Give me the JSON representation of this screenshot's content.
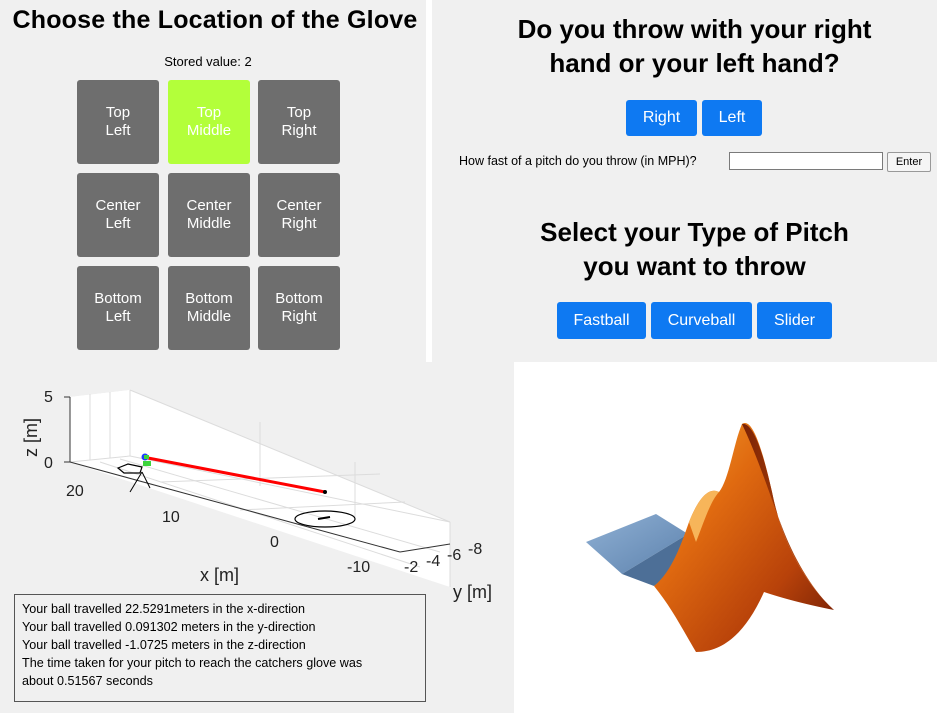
{
  "glove": {
    "title": "Choose the Location of the Glove",
    "stored_label": "Stored value: 2",
    "cells": [
      {
        "label": "Top\nLeft",
        "active": false
      },
      {
        "label": "Top\nMiddle",
        "active": true
      },
      {
        "label": "Top\nRight",
        "active": false
      },
      {
        "label": "Center\nLeft",
        "active": false
      },
      {
        "label": "Center\nMiddle",
        "active": false
      },
      {
        "label": "Center\nRight",
        "active": false
      },
      {
        "label": "Bottom\nLeft",
        "active": false
      },
      {
        "label": "Bottom\nMiddle",
        "active": false
      },
      {
        "label": "Bottom\nRight",
        "active": false
      }
    ],
    "active_color": "#b3ff3a",
    "cell_color": "#6e6e6e"
  },
  "throw": {
    "title": "Do you throw with your right\nhand or your left hand?",
    "right_label": "Right",
    "left_label": "Left",
    "mph_label": "How fast of a pitch do you throw (in MPH)?",
    "mph_value": "",
    "enter_label": "Enter",
    "pitch_title": "Select your Type of Pitch\nyou want to throw",
    "pitch_types": [
      "Fastball",
      "Curveball",
      "Slider"
    ],
    "button_color": "#0e79f2"
  },
  "plot": {
    "z_label": "z [m]",
    "x_label": "x [m]",
    "y_label": "y [m]",
    "z_ticks": [
      "5",
      "0"
    ],
    "x_ticks": [
      "20",
      "10",
      "0",
      "-10"
    ],
    "y_ticks": [
      "-2",
      "-4",
      "-6",
      "-8"
    ],
    "trajectory_color": "#ff0000"
  },
  "results": {
    "lines": [
      "Your ball travelled 22.5291meters in the x-direction",
      "Your ball travelled 0.091302 meters in the y-direction",
      "Your ball travelled -1.0725 meters in the z-direction",
      "The time taken for your pitch to reach the catchers glove was",
      "about 0.51567 seconds"
    ]
  },
  "logo": {
    "icon": "matlab-membrane-logo"
  }
}
